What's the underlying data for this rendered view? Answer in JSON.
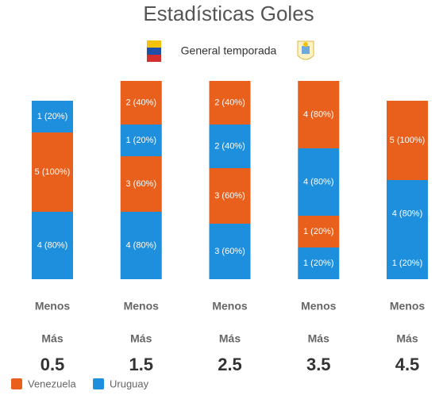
{
  "chart_data": {
    "type": "stacked-count",
    "title": "Estadísticas Goles",
    "subtitle": "General temporada",
    "series": [
      {
        "name": "Venezuela",
        "color": "#e8601c"
      },
      {
        "name": "Uruguay",
        "color": "#1e8fdc"
      }
    ],
    "columns": [
      {
        "category": "0.5",
        "under_label": "Menos",
        "over_label": "Más",
        "segments": [
          {
            "series": 1,
            "value": 4,
            "label": "4 (80%)"
          },
          {
            "series": 0,
            "value": 5,
            "label": "5 (100%)"
          },
          {
            "series": 1,
            "value": 1,
            "label": "1 (20%)"
          }
        ]
      },
      {
        "category": "1.5",
        "under_label": "Menos",
        "over_label": "Más",
        "segments": [
          {
            "series": 1,
            "value": 4,
            "label": "4 (80%)"
          },
          {
            "series": 0,
            "value": 3,
            "label": "3 (60%)"
          },
          {
            "series": 1,
            "value": 1,
            "label": "1 (20%)"
          },
          {
            "series": 0,
            "value": 2,
            "label": "2 (40%)"
          }
        ]
      },
      {
        "category": "2.5",
        "under_label": "Menos",
        "over_label": "Más",
        "segments": [
          {
            "series": 1,
            "value": 3,
            "label": "3 (60%)"
          },
          {
            "series": 0,
            "value": 3,
            "label": "3 (60%)"
          },
          {
            "series": 1,
            "value": 2,
            "label": "2 (40%)"
          },
          {
            "series": 0,
            "value": 2,
            "label": "2 (40%)"
          }
        ]
      },
      {
        "category": "3.5",
        "under_label": "Menos",
        "over_label": "Más",
        "segments": [
          {
            "series": 1,
            "value": 1,
            "label": "1 (20%)"
          },
          {
            "series": 0,
            "value": 1,
            "label": "1 (20%)"
          },
          {
            "series": 1,
            "value": 4,
            "label": "4 (80%)"
          },
          {
            "series": 0,
            "value": 4,
            "label": "4 (80%)"
          }
        ]
      },
      {
        "category": "4.5",
        "under_label": "Menos",
        "over_label": "Más",
        "segments": [
          {
            "series": 1,
            "value": 1,
            "label": "1 (20%)"
          },
          {
            "series": 1,
            "value": 4,
            "label": "4 (80%)"
          },
          {
            "series": 0,
            "value": 5,
            "label": "5 (100%)"
          }
        ]
      }
    ]
  }
}
